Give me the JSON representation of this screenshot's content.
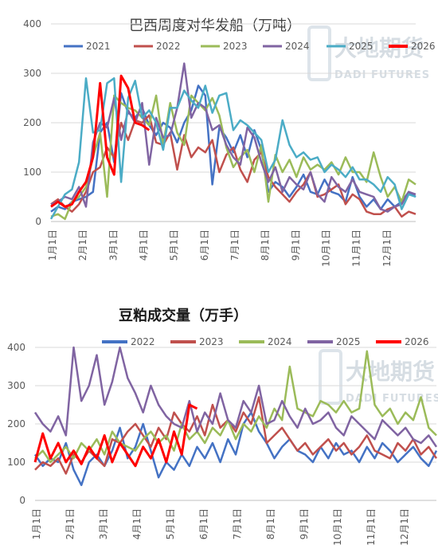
{
  "watermark": {
    "cn": "大地期货",
    "en": "DADI FUTURES"
  },
  "chart_data": [
    {
      "type": "line",
      "title": "巴西周度对华发船（万吨）",
      "ylim": [
        0,
        400
      ],
      "yticks": [
        "0",
        "100",
        "200",
        "300",
        "400"
      ],
      "xticks": [
        "1月1日",
        "2月1日",
        "3月1日",
        "4月1日",
        "5月1日",
        "6月1日",
        "7月1日",
        "8月1日",
        "9月1日",
        "10月1日",
        "11月1日",
        "12月1日"
      ],
      "xlim": [
        1,
        53
      ],
      "grid": "horizontal",
      "legend_position": "top",
      "series": [
        {
          "name": "2021",
          "color": "#4472c4",
          "x": [
            1,
            2,
            3,
            4,
            5,
            6,
            7,
            8,
            9,
            10,
            11,
            12,
            13,
            14,
            15,
            16,
            17,
            18,
            19,
            20,
            21,
            22,
            23,
            24,
            25,
            26,
            27,
            28,
            29,
            30,
            31,
            32,
            33,
            34,
            35,
            36,
            37,
            38,
            39,
            40,
            41,
            42,
            43,
            44,
            45,
            46,
            47,
            48,
            49,
            50,
            51,
            52,
            53
          ],
          "values": [
            20,
            30,
            25,
            40,
            45,
            50,
            60,
            180,
            200,
            120,
            260,
            220,
            210,
            230,
            195,
            175,
            200,
            190,
            160,
            200,
            225,
            275,
            255,
            75,
            190,
            170,
            140,
            175,
            130,
            185,
            145,
            60,
            80,
            70,
            50,
            70,
            95,
            60,
            55,
            85,
            60,
            55,
            40,
            90,
            50,
            30,
            45,
            25,
            45,
            30,
            40,
            60,
            50
          ]
        },
        {
          "name": "2022",
          "color": "#c0504d",
          "x": [
            1,
            2,
            3,
            4,
            5,
            6,
            7,
            8,
            9,
            10,
            11,
            12,
            13,
            14,
            15,
            16,
            17,
            18,
            19,
            20,
            21,
            22,
            23,
            24,
            25,
            26,
            27,
            28,
            29,
            30,
            31,
            32,
            33,
            34,
            35,
            36,
            37,
            38,
            39,
            40,
            41,
            42,
            43,
            44,
            45,
            46,
            47,
            48,
            49,
            50,
            51,
            52,
            53
          ],
          "values": [
            35,
            45,
            30,
            20,
            35,
            60,
            100,
            110,
            150,
            130,
            200,
            165,
            205,
            200,
            215,
            160,
            155,
            180,
            105,
            175,
            130,
            150,
            140,
            165,
            100,
            135,
            150,
            105,
            80,
            125,
            140,
            90,
            70,
            55,
            40,
            60,
            75,
            100,
            50,
            55,
            65,
            75,
            35,
            55,
            45,
            20,
            15,
            15,
            25,
            30,
            10,
            20,
            15
          ]
        },
        {
          "name": "2023",
          "color": "#9bbb59",
          "x": [
            1,
            2,
            3,
            4,
            5,
            6,
            7,
            8,
            9,
            10,
            11,
            12,
            13,
            14,
            15,
            16,
            17,
            18,
            19,
            20,
            21,
            22,
            23,
            24,
            25,
            26,
            27,
            28,
            29,
            30,
            31,
            32,
            33,
            34,
            35,
            36,
            37,
            38,
            39,
            40,
            41,
            42,
            43,
            44,
            45,
            46,
            47,
            48,
            49,
            50,
            51,
            52,
            53
          ],
          "values": [
            10,
            15,
            5,
            40,
            50,
            70,
            130,
            180,
            50,
            255,
            240,
            230,
            225,
            210,
            195,
            255,
            155,
            240,
            180,
            155,
            255,
            240,
            225,
            250,
            215,
            150,
            110,
            130,
            145,
            100,
            155,
            40,
            135,
            100,
            125,
            90,
            130,
            105,
            115,
            105,
            120,
            95,
            130,
            100,
            100,
            80,
            140,
            90,
            50,
            70,
            40,
            85,
            75
          ]
        },
        {
          "name": "2024",
          "color": "#8064a2",
          "x": [
            1,
            2,
            3,
            4,
            5,
            6,
            7,
            8,
            9,
            10,
            11,
            12,
            13,
            14,
            15,
            16,
            17,
            18,
            19,
            20,
            21,
            22,
            23,
            24,
            25,
            26,
            27,
            28,
            29,
            30,
            31,
            32,
            33,
            34,
            35,
            36,
            37,
            38,
            39,
            40,
            41,
            42,
            43,
            44,
            45,
            46,
            47,
            48,
            49,
            50,
            51,
            52,
            53
          ],
          "values": [
            35,
            40,
            50,
            45,
            70,
            30,
            160,
            200,
            190,
            250,
            165,
            225,
            200,
            240,
            115,
            210,
            170,
            175,
            230,
            320,
            210,
            240,
            230,
            185,
            195,
            155,
            130,
            115,
            190,
            170,
            120,
            80,
            110,
            60,
            90,
            75,
            65,
            100,
            55,
            40,
            90,
            70,
            60,
            85,
            60,
            55,
            50,
            25,
            20,
            30,
            35,
            60,
            55
          ]
        },
        {
          "name": "2025",
          "color": "#4bacc6",
          "x": [
            1,
            2,
            3,
            4,
            5,
            6,
            7,
            8,
            9,
            10,
            11,
            12,
            13,
            14,
            15,
            16,
            17,
            18,
            19,
            20,
            21,
            22,
            23,
            24,
            25,
            26,
            27,
            28,
            29,
            30,
            31,
            32,
            33,
            34,
            35,
            36,
            37,
            38,
            39,
            40,
            41,
            42,
            43,
            44,
            45,
            46,
            47,
            48,
            49,
            50,
            51,
            52,
            53
          ],
          "values": [
            5,
            30,
            55,
            65,
            120,
            290,
            180,
            185,
            280,
            290,
            80,
            250,
            285,
            210,
            225,
            200,
            145,
            230,
            230,
            265,
            245,
            230,
            275,
            220,
            255,
            260,
            185,
            205,
            195,
            180,
            165,
            100,
            125,
            205,
            155,
            130,
            140,
            125,
            130,
            100,
            115,
            105,
            90,
            110,
            85,
            85,
            75,
            60,
            90,
            75,
            25,
            55,
            50
          ]
        },
        {
          "name": "2026",
          "color": "#ff0000",
          "x": [
            1,
            2,
            3,
            4,
            5,
            6,
            7,
            8,
            9,
            10,
            11,
            12,
            13,
            14,
            15
          ],
          "values": [
            30,
            40,
            30,
            35,
            60,
            80,
            130,
            280,
            130,
            95,
            295,
            270,
            200,
            195,
            185
          ]
        }
      ]
    },
    {
      "type": "line",
      "title": "豆粕成交量（万手）",
      "ylim": [
        0,
        400
      ],
      "yticks": [
        "0",
        "100",
        "200",
        "300",
        "400"
      ],
      "xticks": [
        "1月1日",
        "2月1日",
        "3月1日",
        "4月1日",
        "5月1日",
        "6月1日",
        "7月1日",
        "8月1日",
        "9月1日",
        "10月1日",
        "11月1日",
        "12月1日"
      ],
      "xlim": [
        1,
        53
      ],
      "grid": "horizontal",
      "legend_position": "top",
      "series": [
        {
          "name": "2022",
          "color": "#4472c4",
          "x": [
            1,
            2,
            3,
            4,
            5,
            6,
            7,
            8,
            9,
            10,
            11,
            12,
            13,
            14,
            15,
            16,
            17,
            18,
            19,
            20,
            21,
            22,
            23,
            24,
            25,
            26,
            27,
            28,
            29,
            30,
            31,
            32,
            33,
            34,
            35,
            36,
            37,
            38,
            39,
            40,
            41,
            42,
            43,
            44,
            45,
            46,
            47,
            48,
            49,
            50,
            51,
            52,
            53
          ],
          "values": [
            120,
            90,
            110,
            100,
            150,
            80,
            40,
            100,
            120,
            90,
            130,
            190,
            110,
            140,
            200,
            130,
            60,
            100,
            80,
            120,
            90,
            140,
            110,
            150,
            100,
            160,
            120,
            200,
            230,
            180,
            150,
            110,
            140,
            160,
            130,
            120,
            100,
            140,
            110,
            150,
            120,
            130,
            100,
            140,
            110,
            150,
            130,
            100,
            120,
            140,
            110,
            90,
            130
          ]
        },
        {
          "name": "2023",
          "color": "#c0504d",
          "x": [
            1,
            2,
            3,
            4,
            5,
            6,
            7,
            8,
            9,
            10,
            11,
            12,
            13,
            14,
            15,
            16,
            17,
            18,
            19,
            20,
            21,
            22,
            23,
            24,
            25,
            26,
            27,
            28,
            29,
            30,
            31,
            32,
            33,
            34,
            35,
            36,
            37,
            38,
            39,
            40,
            41,
            42,
            43,
            44,
            45,
            46,
            47,
            48,
            49,
            50,
            51,
            52,
            53
          ],
          "values": [
            80,
            100,
            90,
            110,
            70,
            120,
            100,
            130,
            110,
            90,
            160,
            150,
            180,
            200,
            170,
            140,
            190,
            160,
            230,
            200,
            180,
            220,
            170,
            250,
            190,
            210,
            180,
            230,
            200,
            270,
            150,
            170,
            190,
            160,
            130,
            150,
            120,
            140,
            160,
            130,
            150,
            120,
            140,
            170,
            130,
            120,
            110,
            150,
            130,
            160,
            120,
            140,
            110
          ]
        },
        {
          "name": "2024",
          "color": "#9bbb59",
          "x": [
            1,
            2,
            3,
            4,
            5,
            6,
            7,
            8,
            9,
            10,
            11,
            12,
            13,
            14,
            15,
            16,
            17,
            18,
            19,
            20,
            21,
            22,
            23,
            24,
            25,
            26,
            27,
            28,
            29,
            30,
            31,
            32,
            33,
            34,
            35,
            36,
            37,
            38,
            39,
            40,
            41,
            42,
            43,
            44,
            45,
            46,
            47,
            48,
            49,
            50,
            51,
            52,
            53
          ],
          "values": [
            110,
            130,
            100,
            120,
            140,
            110,
            150,
            130,
            160,
            120,
            180,
            150,
            140,
            130,
            160,
            180,
            150,
            170,
            130,
            200,
            160,
            180,
            150,
            190,
            170,
            210,
            160,
            200,
            180,
            220,
            190,
            240,
            210,
            350,
            240,
            230,
            220,
            260,
            250,
            230,
            260,
            230,
            240,
            390,
            250,
            220,
            240,
            200,
            230,
            210,
            270,
            190,
            170
          ]
        },
        {
          "name": "2025",
          "color": "#8064a2",
          "x": [
            1,
            2,
            3,
            4,
            5,
            6,
            7,
            8,
            9,
            10,
            11,
            12,
            13,
            14,
            15,
            16,
            17,
            18,
            19,
            20,
            21,
            22,
            23,
            24,
            25,
            26,
            27,
            28,
            29,
            30,
            31,
            32,
            33,
            34,
            35,
            36,
            37,
            38,
            39,
            40,
            41,
            42,
            43,
            44,
            45,
            46,
            47,
            48,
            49,
            50,
            51,
            52,
            53
          ],
          "values": [
            230,
            200,
            180,
            220,
            170,
            400,
            260,
            300,
            380,
            250,
            310,
            400,
            320,
            280,
            230,
            300,
            250,
            220,
            200,
            190,
            260,
            180,
            230,
            200,
            280,
            210,
            190,
            260,
            230,
            300,
            200,
            210,
            260,
            220,
            190,
            240,
            200,
            210,
            230,
            190,
            170,
            220,
            200,
            180,
            160,
            210,
            190,
            170,
            190,
            160,
            150,
            170,
            140
          ]
        },
        {
          "name": "2026",
          "color": "#ff0000",
          "x": [
            1,
            2,
            3,
            4,
            5,
            6,
            7,
            8,
            9,
            10,
            11,
            12,
            13,
            14,
            15,
            16,
            17,
            18,
            19,
            20,
            21,
            22
          ],
          "values": [
            100,
            175,
            110,
            150,
            100,
            130,
            95,
            140,
            110,
            170,
            100,
            150,
            120,
            90,
            140,
            110,
            160,
            100,
            180,
            120,
            250,
            240
          ]
        }
      ]
    }
  ]
}
